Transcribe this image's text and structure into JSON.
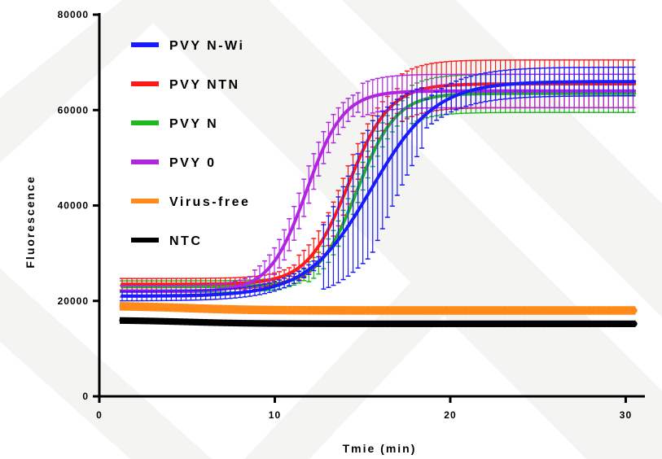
{
  "chart_data": {
    "type": "line",
    "title": "",
    "xlabel": "Tmie (min)",
    "ylabel": "Fluorescence",
    "xlim": [
      0,
      31
    ],
    "ylim": [
      0,
      80000
    ],
    "xticks": [
      0,
      10,
      20,
      30
    ],
    "yticks": [
      0,
      20000,
      40000,
      60000,
      80000
    ],
    "grid": false,
    "error_bars": true,
    "legend_position": "top-left",
    "x_start": 1.3,
    "x_end": 30.5,
    "series": [
      {
        "name": "PVY N-Wi",
        "color": "#1a1aff",
        "base": 21000,
        "top": 66000,
        "midpoint": 15.5,
        "steepness": 0.55,
        "error": [
          1000,
          6000,
          14000,
          3000
        ]
      },
      {
        "name": "PVY NTN",
        "color": "#ff1a1a",
        "base": 23500,
        "top": 65500,
        "midpoint": 14.2,
        "steepness": 0.85,
        "error": [
          1200,
          2500,
          4000,
          5000
        ]
      },
      {
        "name": "PVY N",
        "color": "#1fb81f",
        "base": 23000,
        "top": 63500,
        "midpoint": 14.7,
        "steepness": 0.9,
        "error": [
          1200,
          2000,
          3000,
          4000
        ]
      },
      {
        "name": "PVY 0",
        "color": "#b026e0",
        "base": 22000,
        "top": 64000,
        "midpoint": 11.8,
        "steepness": 0.95,
        "error": [
          1200,
          2000,
          4000,
          3500
        ]
      },
      {
        "name": "Virus-free",
        "color": "#ff8a1a",
        "base": 19000,
        "top": 18000,
        "midpoint": 5,
        "steepness": 0.5,
        "error": [
          900,
          900,
          900,
          900
        ]
      },
      {
        "name": "NTC",
        "color": "#000000",
        "base": 16000,
        "top": 15200,
        "midpoint": 5,
        "steepness": 0.5,
        "error": [
          700,
          700,
          700,
          700
        ]
      }
    ]
  }
}
